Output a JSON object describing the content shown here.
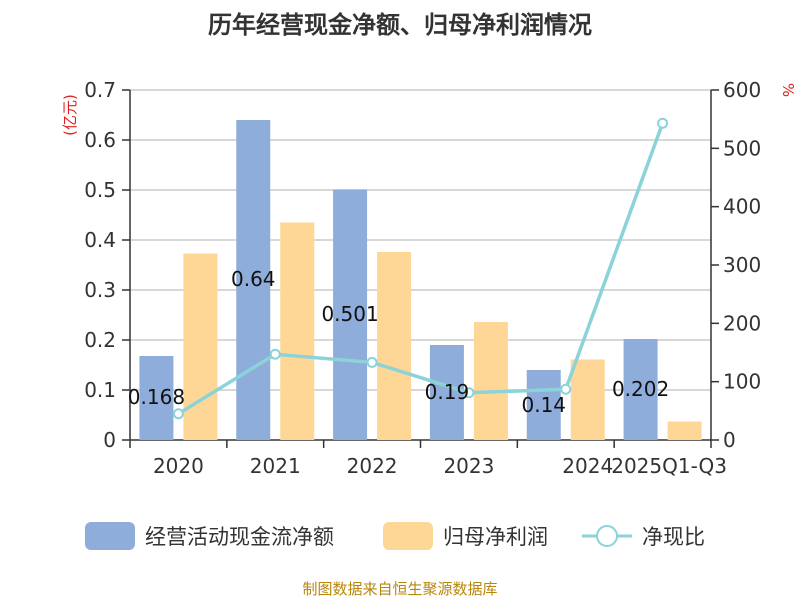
{
  "title": "历年经营现金净额、归母净利润情况",
  "source": "制图数据来自恒生聚源数据库",
  "chart_data": {
    "type": "bar",
    "title": "历年经营现金净额、归母净利润情况",
    "categories": [
      "2020",
      "2021",
      "2022",
      "2023",
      "2024",
      "2025Q1-Q3"
    ],
    "series": [
      {
        "name": "经营活动现金流净额",
        "type": "bar",
        "axis": "left",
        "color": "#8eaddb",
        "values": [
          0.168,
          0.64,
          0.501,
          0.19,
          0.14,
          0.202
        ],
        "labels": [
          "0.168",
          "0.64",
          "0.501",
          "0.19",
          "0.14",
          "0.202"
        ]
      },
      {
        "name": "归母净利润",
        "type": "bar",
        "axis": "left",
        "color": "#fed797",
        "values": [
          0.373,
          0.435,
          0.376,
          0.236,
          0.161,
          0.037
        ]
      },
      {
        "name": "净现比",
        "type": "line",
        "axis": "right",
        "color": "#8bd3d9",
        "values": [
          45,
          147,
          133,
          81,
          87,
          543
        ]
      }
    ],
    "y_left": {
      "unit": "(亿元)",
      "min": 0,
      "max": 0.7,
      "ticks": [
        "0",
        "0.1",
        "0.2",
        "0.3",
        "0.4",
        "0.5",
        "0.6",
        "0.7"
      ]
    },
    "y_right": {
      "unit": "%",
      "min": 0,
      "max": 600,
      "ticks": [
        "0",
        "100",
        "200",
        "300",
        "400",
        "500",
        "600"
      ]
    },
    "grid": true,
    "legend_position": "bottom"
  }
}
